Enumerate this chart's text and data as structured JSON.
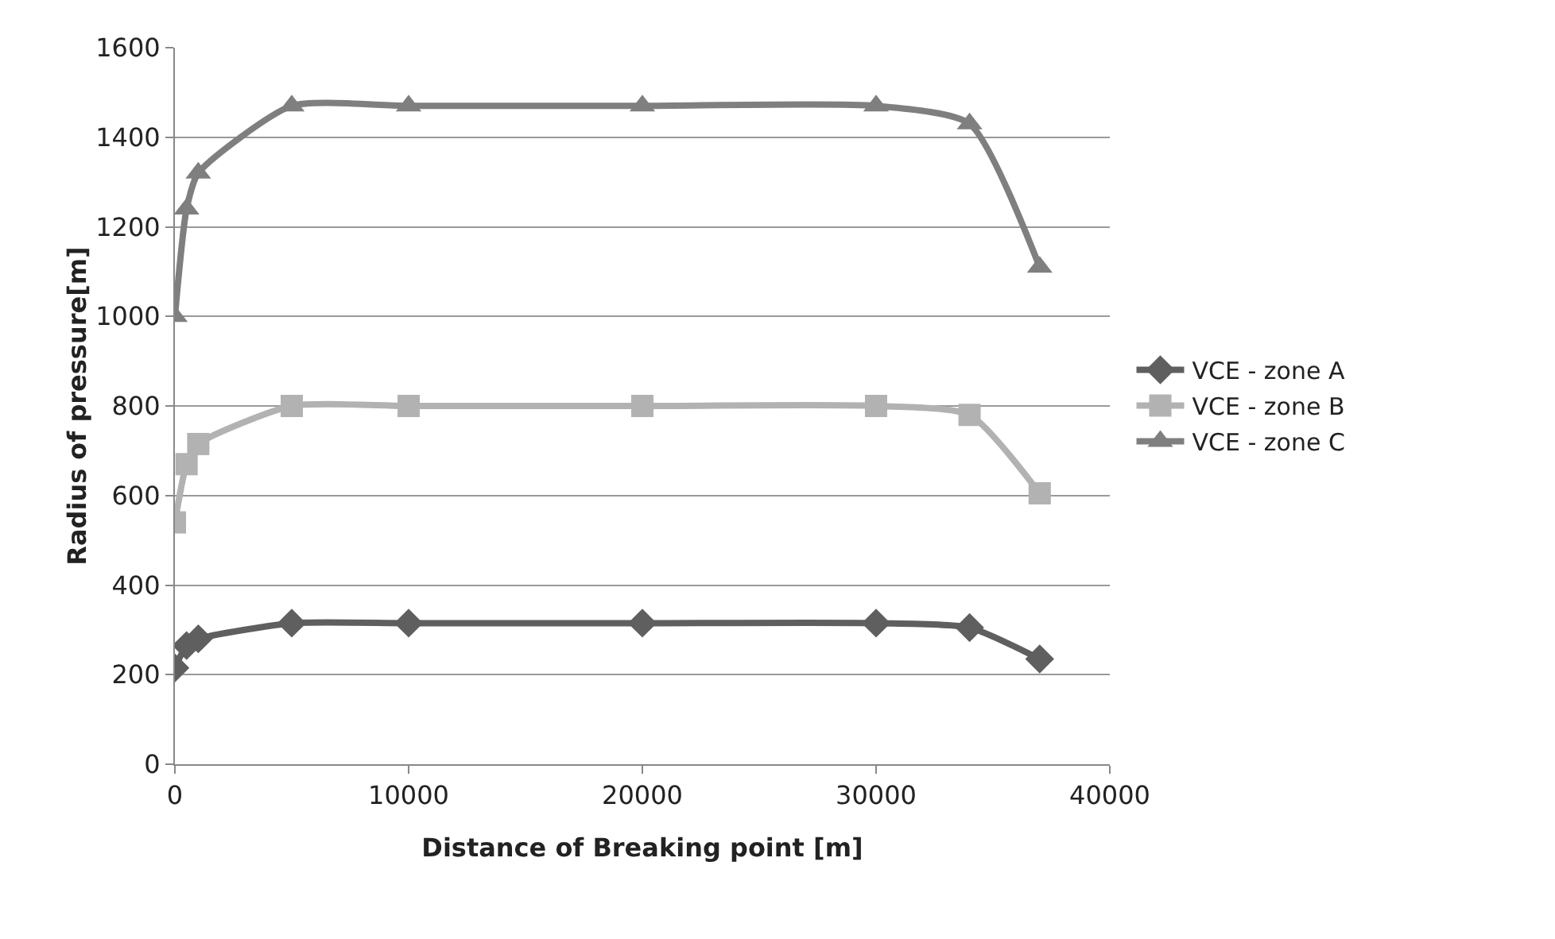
{
  "chart_data": {
    "type": "line",
    "xlabel": "Distance of Breaking point [m]",
    "ylabel": "Radius of pressure[m]",
    "x": [
      0,
      500,
      1000,
      5000,
      10000,
      20000,
      30000,
      34000,
      37000
    ],
    "series": [
      {
        "name": "VCE - zone A",
        "color": "#5f5f5f",
        "marker": "diamond",
        "values": [
          215,
          265,
          280,
          315,
          315,
          315,
          315,
          305,
          235
        ]
      },
      {
        "name": "VCE - zone B",
        "color": "#b2b2b2",
        "marker": "square",
        "values": [
          540,
          670,
          715,
          800,
          800,
          800,
          800,
          780,
          605
        ]
      },
      {
        "name": "VCE - zone C",
        "color": "#7f7f7f",
        "marker": "triangle",
        "values": [
          1000,
          1240,
          1320,
          1470,
          1470,
          1470,
          1470,
          1430,
          1110
        ]
      }
    ],
    "xlim": [
      0,
      40000
    ],
    "xticks": [
      0,
      10000,
      20000,
      30000,
      40000
    ],
    "ylim": [
      0,
      1600
    ],
    "yticks": [
      0,
      200,
      400,
      600,
      800,
      1000,
      1200,
      1400,
      1600
    ],
    "grid": "y",
    "legend": "right",
    "line_style": "solid"
  }
}
